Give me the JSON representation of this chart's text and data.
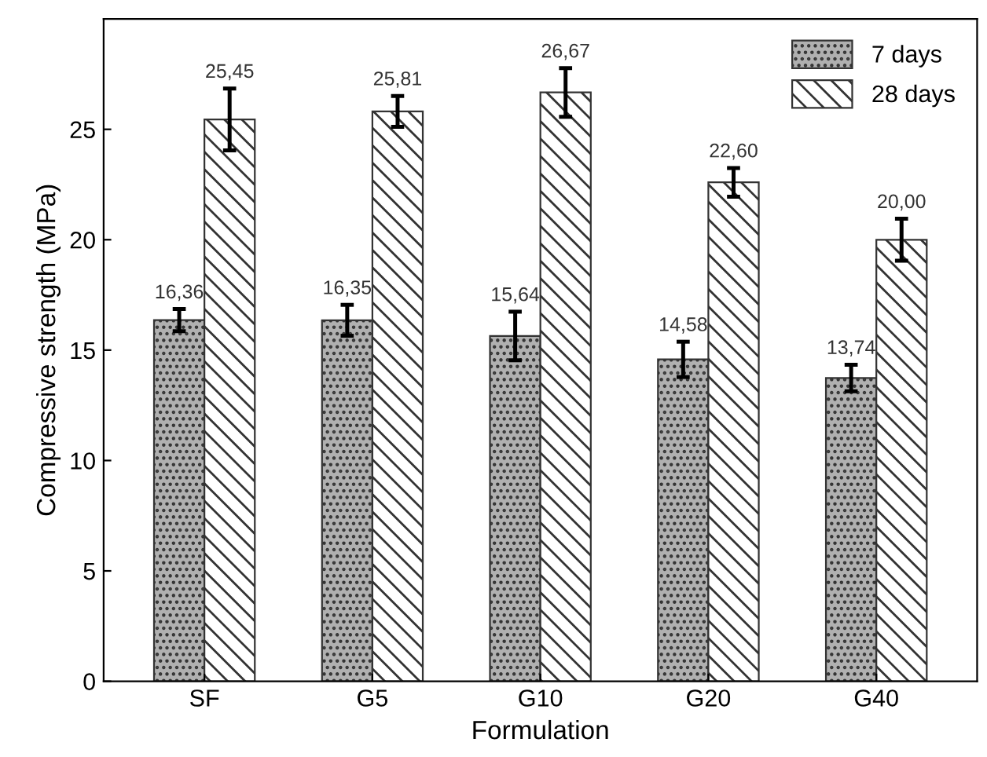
{
  "chart_data": {
    "type": "bar",
    "xlabel": "Formulation",
    "ylabel": "Compressive strength (MPa)",
    "categories": [
      "SF",
      "G5",
      "G10",
      "G20",
      "G40"
    ],
    "series": [
      {
        "name": "7 days",
        "color": "#333333",
        "values": [
          16.36,
          16.35,
          15.64,
          14.58,
          13.74
        ],
        "errors": [
          0.5,
          0.7,
          1.1,
          0.8,
          0.6
        ],
        "value_labels": [
          "16,36",
          "16,35",
          "15,64",
          "14,58",
          "13,74"
        ]
      },
      {
        "name": "28 days",
        "color": "#333333",
        "values": [
          25.45,
          25.81,
          26.67,
          22.6,
          20.0
        ],
        "errors": [
          1.4,
          0.7,
          1.1,
          0.65,
          0.95
        ],
        "value_labels": [
          "25,45",
          "25,81",
          "26,67",
          "22,60",
          "20,00"
        ]
      }
    ],
    "ylim": [
      0,
      30
    ],
    "yticks": [
      0,
      5,
      10,
      15,
      20,
      25
    ],
    "grid": false,
    "legend": "top right"
  }
}
